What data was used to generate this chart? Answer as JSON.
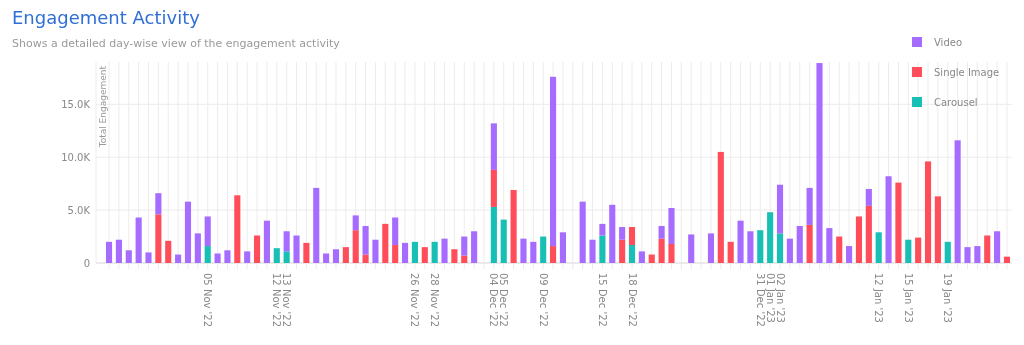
{
  "chart_data": {
    "type": "bar",
    "title": "Engagement Activity",
    "subtitle": "Shows a detailed day-wise view of the engagement activity",
    "ylabel": "Total Engagement",
    "categories": [
      null,
      null,
      null,
      null,
      null,
      null,
      null,
      null,
      null,
      null,
      "05 Nov '22",
      null,
      null,
      null,
      null,
      null,
      null,
      "12 Nov '22",
      "13 Nov '22",
      null,
      null,
      null,
      null,
      null,
      null,
      null,
      null,
      null,
      null,
      null,
      null,
      "26 Nov '22",
      null,
      "28 Nov '22",
      null,
      null,
      null,
      null,
      null,
      "04 Dec '22",
      "05 Dec '22",
      null,
      null,
      null,
      "09 Dec '22",
      null,
      null,
      null,
      null,
      null,
      "15 Dec '22",
      null,
      null,
      "18 Dec '22",
      null,
      null,
      null,
      null,
      null,
      null,
      null,
      null,
      null,
      null,
      null,
      null,
      "31 Dec '22",
      "01 Jan '23",
      "02 Jan '23",
      null,
      null,
      null,
      null,
      null,
      null,
      null,
      null,
      null,
      "12 Jan '23",
      null,
      null,
      "15 Jan '23",
      null,
      null,
      null,
      "19 Jan '23",
      null,
      null,
      null,
      null,
      null,
      null
    ],
    "stacked": true,
    "series": [
      {
        "name": "Carousel",
        "color": "#17bfb5",
        "values": [
          null,
          null,
          null,
          null,
          null,
          null,
          null,
          null,
          null,
          null,
          1600,
          null,
          null,
          null,
          null,
          null,
          null,
          1400,
          1100,
          null,
          null,
          null,
          null,
          null,
          null,
          null,
          null,
          null,
          null,
          null,
          null,
          2000,
          null,
          2000,
          null,
          null,
          null,
          null,
          null,
          5300,
          4100,
          null,
          null,
          null,
          2500,
          null,
          null,
          null,
          null,
          null,
          2600,
          null,
          null,
          1700,
          null,
          null,
          null,
          null,
          null,
          null,
          null,
          null,
          null,
          null,
          null,
          null,
          3100,
          4800,
          2800,
          null,
          null,
          null,
          null,
          null,
          null,
          null,
          null,
          null,
          2900,
          null,
          null,
          2200,
          null,
          null,
          null,
          2000,
          null,
          null,
          null,
          null,
          null,
          null
        ]
      },
      {
        "name": "Single Image",
        "color": "#ff4d5a",
        "values": [
          null,
          null,
          null,
          null,
          null,
          4600,
          2100,
          null,
          null,
          null,
          null,
          null,
          null,
          6400,
          null,
          2600,
          null,
          null,
          null,
          null,
          1900,
          null,
          null,
          null,
          1500,
          3100,
          800,
          null,
          3700,
          1700,
          null,
          null,
          1500,
          null,
          null,
          1300,
          700,
          null,
          null,
          3500,
          null,
          6900,
          null,
          null,
          null,
          1600,
          null,
          null,
          null,
          null,
          null,
          null,
          2200,
          1700,
          null,
          800,
          2300,
          1800,
          null,
          null,
          null,
          null,
          10500,
          2000,
          null,
          null,
          null,
          null,
          null,
          null,
          null,
          3600,
          null,
          null,
          2500,
          null,
          4400,
          5400,
          null,
          null,
          7600,
          null,
          2400,
          9600,
          6300,
          null,
          null,
          null,
          null,
          2600,
          null,
          600
        ]
      },
      {
        "name": "Video",
        "color": "#a66cff",
        "values": [
          2000,
          2200,
          1200,
          4300,
          1000,
          2000,
          null,
          800,
          5800,
          2800,
          2800,
          900,
          1200,
          null,
          1100,
          null,
          4000,
          null,
          1900,
          2600,
          null,
          7100,
          900,
          1300,
          null,
          1400,
          2700,
          2200,
          null,
          2600,
          1900,
          null,
          null,
          null,
          2300,
          null,
          1800,
          3000,
          null,
          4400,
          null,
          null,
          2300,
          2000,
          null,
          16000,
          2900,
          null,
          5800,
          2200,
          1100,
          5500,
          1200,
          null,
          1100,
          null,
          1200,
          3400,
          null,
          2700,
          null,
          2800,
          null,
          null,
          4000,
          3000,
          null,
          null,
          4600,
          2300,
          3500,
          3500,
          18900,
          3300,
          null,
          1600,
          null,
          1600,
          null,
          8200,
          null,
          null,
          null,
          null,
          null,
          null,
          11600,
          1500,
          1600,
          null,
          3000,
          null
        ]
      }
    ],
    "ylim": [
      0,
      19000
    ],
    "yticks": [
      0,
      {
        "value": 5000,
        "label": "5.0K"
      },
      {
        "value": 10000,
        "label": "10.0K"
      },
      {
        "value": 15000,
        "label": "15.0K"
      }
    ],
    "grid": true,
    "legend": "top right"
  }
}
